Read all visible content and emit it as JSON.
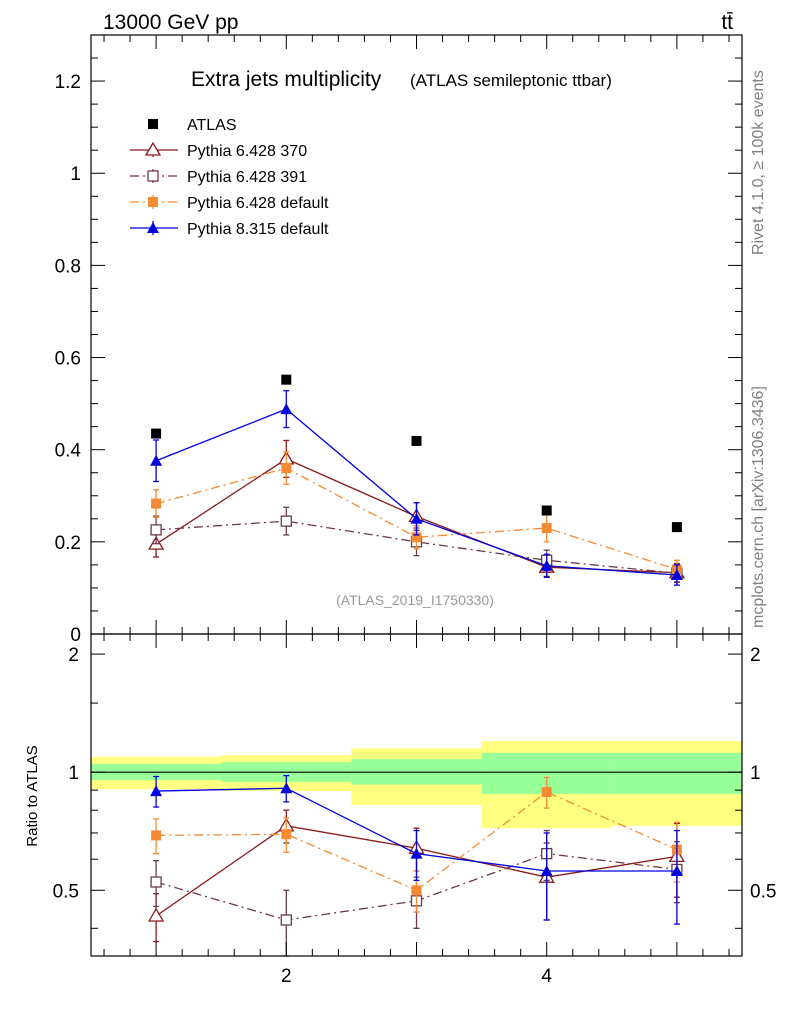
{
  "header": {
    "left": "13000 GeV pp",
    "right": "tt̄"
  },
  "side_labels": {
    "rivet": "Rivet 4.1.0, ≥ 100k events",
    "mcplots": "mcplots.cern.ch [arXiv:1306.3436]"
  },
  "chart_data": {
    "type": "scatter",
    "title": "Extra jets multiplicity",
    "subtitle": "(ATLAS semileptonic ttbar)",
    "watermark": "(ATLAS_2019_I1750330)",
    "x": [
      1,
      2,
      3,
      4,
      5
    ],
    "xlim": [
      0.5,
      5.5
    ],
    "xticks": [
      2,
      4
    ],
    "main": {
      "ylim": [
        0,
        1.3
      ],
      "yticks": [
        0,
        0.2,
        0.4,
        0.6,
        0.8,
        1,
        1.2
      ],
      "ytick_labels": [
        "0",
        "0.2",
        "0.4",
        "0.6",
        "0.8",
        "1",
        "1.2"
      ],
      "series": [
        {
          "name": "ATLAS",
          "color": "#000000",
          "marker": "square-filled",
          "line": "none",
          "values": [
            0.435,
            0.552,
            0.419,
            0.268,
            0.232
          ],
          "errors": [
            0,
            0,
            0,
            0,
            0
          ]
        },
        {
          "name": "Pythia 6.428 370",
          "color": "#8b1a1a",
          "marker": "triangle-open",
          "line": "solid",
          "values": [
            0.195,
            0.38,
            0.255,
            0.145,
            0.133
          ],
          "errors": [
            0.028,
            0.04,
            0.03,
            0.02,
            0.02
          ]
        },
        {
          "name": "Pythia 6.428 391",
          "color": "#6b3a4a",
          "marker": "square-open",
          "line": "dashdot",
          "values": [
            0.226,
            0.245,
            0.2,
            0.16,
            0.132
          ],
          "errors": [
            0.03,
            0.03,
            0.03,
            0.022,
            0.02
          ]
        },
        {
          "name": "Pythia 6.428 default",
          "color": "#f58a35",
          "marker": "square-filled",
          "line": "dashdot",
          "values": [
            0.283,
            0.36,
            0.21,
            0.23,
            0.14
          ],
          "errors": [
            0.03,
            0.035,
            0.025,
            0.03,
            0.02
          ]
        },
        {
          "name": "Pythia 8.315 default",
          "color": "#0000e0",
          "marker": "triangle-filled",
          "line": "solid",
          "values": [
            0.376,
            0.488,
            0.25,
            0.148,
            0.128
          ],
          "errors": [
            0.045,
            0.04,
            0.035,
            0.025,
            0.022
          ]
        }
      ]
    },
    "ratio": {
      "ylabel": "Ratio to ATLAS",
      "ylim": [
        0.34,
        2.25
      ],
      "yticks": [
        0.5,
        1,
        2
      ],
      "ytick_labels": [
        "0.5",
        "1",
        "2"
      ],
      "band_edges": [
        0.5,
        1.5,
        2.5,
        3.5,
        4.5,
        5.5
      ],
      "band_inner": [
        [
          0.955,
          1.05
        ],
        [
          0.945,
          1.06
        ],
        [
          0.93,
          1.08
        ],
        [
          0.88,
          1.12
        ],
        [
          0.88,
          1.12
        ]
      ],
      "band_outer": [
        [
          0.905,
          1.095
        ],
        [
          0.895,
          1.105
        ],
        [
          0.825,
          1.15
        ],
        [
          0.72,
          1.2
        ],
        [
          0.73,
          1.2
        ]
      ],
      "series": [
        {
          "name": "Pythia 6.428 370",
          "values": [
            0.43,
            0.73,
            0.64,
            0.54,
            0.61
          ],
          "errors": [
            0.06,
            0.07,
            0.08,
            0.12,
            0.13
          ]
        },
        {
          "name": "Pythia 6.428 391",
          "values": [
            0.525,
            0.42,
            0.47,
            0.62,
            0.565
          ],
          "errors": [
            0.07,
            0.08,
            0.07,
            0.09,
            0.1
          ]
        },
        {
          "name": "Pythia 6.428 default",
          "values": [
            0.69,
            0.695,
            0.5,
            0.89,
            0.635
          ],
          "errors": [
            0.07,
            0.07,
            0.06,
            0.08,
            0.11
          ]
        },
        {
          "name": "Pythia 8.315 default",
          "values": [
            0.895,
            0.91,
            0.62,
            0.56,
            0.56
          ],
          "errors": [
            0.08,
            0.07,
            0.09,
            0.14,
            0.15
          ]
        }
      ]
    }
  }
}
